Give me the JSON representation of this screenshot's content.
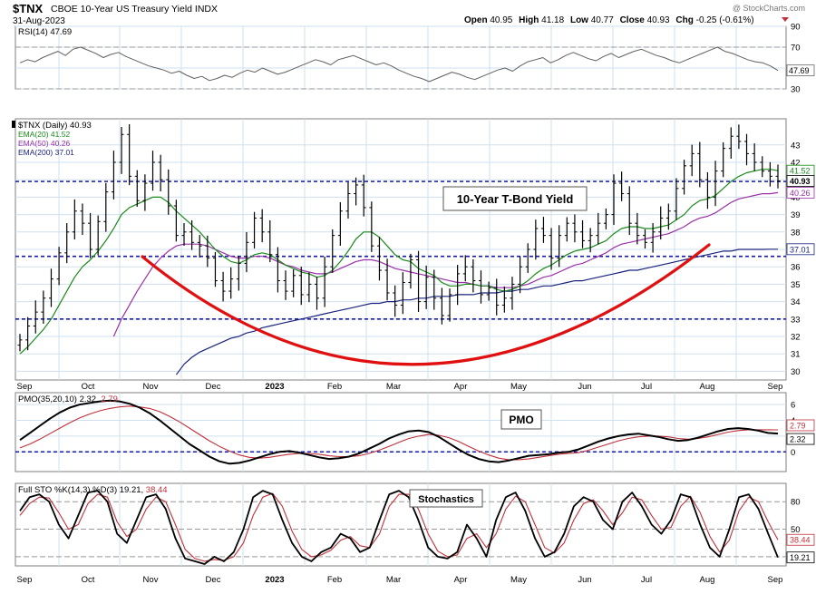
{
  "header": {
    "symbol": "$TNX",
    "description": "CBOE 10-Year US Treasury Yield INDX",
    "date": "31-Aug-2023",
    "ohlc": {
      "open_label": "Open",
      "open": "40.95",
      "high_label": "High",
      "high": "41.18",
      "low_label": "Low",
      "low": "40.77",
      "close_label": "Close",
      "close": "40.93",
      "chg_label": "Chg",
      "chg": "-0.25 (-0.61%)"
    },
    "watermark": "@ StockCharts.com"
  },
  "colors": {
    "grid": "#cfe0ee",
    "panel_border": "#7f7f7f",
    "price_bar": "#000000",
    "ema20": "#1a8a1a",
    "ema50": "#9b30a8",
    "ema200": "#1a237e",
    "support_line": "#1a1aa8",
    "curve": "#e01010",
    "pmo": "#000000",
    "pmo_signal": "#c0303a",
    "rsi": "#606060",
    "rsi_fill": "#c8a56a",
    "zero_line": "#1a1aa8",
    "label_bg": "#ffffff"
  },
  "x_axis": {
    "labels": [
      "Sep",
      "Oct",
      "Nov",
      "Dec",
      "2023",
      "Feb",
      "Mar",
      "Apr",
      "May",
      "Jun",
      "Jul",
      "Aug",
      "Sep"
    ],
    "bold_index": 4
  },
  "chart_data": [
    {
      "type": "line",
      "panel": "rsi",
      "legend": "RSI(14) 47.69",
      "ylim": [
        30,
        90
      ],
      "y_ticks": [
        90,
        70,
        50,
        30
      ],
      "current_value": "47.69",
      "reference_lines": [
        70,
        30
      ],
      "values": [
        55,
        58,
        56,
        60,
        63,
        66,
        62,
        68,
        70,
        67,
        64,
        60,
        63,
        65,
        61,
        58,
        55,
        52,
        50,
        48,
        45,
        47,
        43,
        40,
        42,
        38,
        40,
        43,
        41,
        45,
        48,
        46,
        50,
        47,
        44,
        46,
        49,
        52,
        55,
        58,
        56,
        53,
        58,
        60,
        62,
        59,
        56,
        53,
        55,
        52,
        48,
        45,
        42,
        40,
        37,
        40,
        43,
        46,
        44,
        41,
        39,
        42,
        45,
        48,
        50,
        47,
        52,
        56,
        58,
        60,
        55,
        58,
        62,
        65,
        62,
        59,
        57,
        61,
        64,
        60,
        63,
        66,
        68,
        65,
        62,
        60,
        57,
        55,
        58,
        61,
        64,
        67,
        70,
        66,
        64,
        61,
        58,
        56,
        55,
        52,
        47.69
      ]
    },
    {
      "type": "ohlc",
      "panel": "price",
      "title": "10-Year T-Bond Yield",
      "legend": [
        {
          "label": "$TNX (Daily) 40.93",
          "key": "price"
        },
        {
          "label": "EMA(20) 41.52",
          "key": "ema20"
        },
        {
          "label": "EMA(50) 40.26",
          "key": "ema50"
        },
        {
          "label": "EMA(200) 37.01",
          "key": "ema200"
        }
      ],
      "ylim": [
        29.5,
        44.5
      ],
      "y_ticks": [
        30,
        31,
        32,
        33,
        34,
        35,
        36,
        37,
        38,
        39,
        40,
        41,
        42,
        43
      ],
      "support_levels": [
        40.9,
        36.6,
        33.0
      ],
      "value_tags": [
        {
          "value": 41.52,
          "text": "41.52",
          "style": "ema20"
        },
        {
          "value": 40.93,
          "text": "40.93",
          "style": "close"
        },
        {
          "value": 40.26,
          "text": "40.26",
          "style": "ema50"
        },
        {
          "value": 37.01,
          "text": "37.01",
          "style": "ema200"
        }
      ],
      "close": [
        31.8,
        32.6,
        33.4,
        34.2,
        35.3,
        36.8,
        38.0,
        39.2,
        38.5,
        37.0,
        38.6,
        40.3,
        42.0,
        43.6,
        41.2,
        39.8,
        40.8,
        42.0,
        41.0,
        39.5,
        37.8,
        38.0,
        37.4,
        37.2,
        36.5,
        35.2,
        34.6,
        35.3,
        36.2,
        37.4,
        38.8,
        38.0,
        36.7,
        35.2,
        34.6,
        35.5,
        34.4,
        35.0,
        34.2,
        36.0,
        37.8,
        39.2,
        40.2,
        40.7,
        39.4,
        37.2,
        35.8,
        34.5,
        33.8,
        35.1,
        36.4,
        34.0,
        35.4,
        34.2,
        33.2,
        34.4,
        35.6,
        36.0,
        35.2,
        34.4,
        34.8,
        33.8,
        34.2,
        35.0,
        36.0,
        37.0,
        38.2,
        37.8,
        36.5,
        37.8,
        38.5,
        38.0,
        37.5,
        37.8,
        38.5,
        39.0,
        40.8,
        40.2,
        38.5,
        37.8,
        37.4,
        38.0,
        38.8,
        39.2,
        40.5,
        41.8,
        42.5,
        41.0,
        40.0,
        41.5,
        42.8,
        43.5,
        43.2,
        42.5,
        42.0,
        41.5,
        41.2,
        40.93
      ],
      "ema20": [
        31.0,
        31.4,
        31.9,
        32.4,
        33.0,
        33.8,
        34.6,
        35.4,
        36.0,
        36.4,
        36.9,
        37.5,
        38.2,
        39.0,
        39.4,
        39.6,
        39.8,
        40.0,
        40.0,
        39.7,
        39.2,
        38.8,
        38.4,
        38.0,
        37.5,
        37.0,
        36.6,
        36.3,
        36.2,
        36.4,
        36.7,
        36.8,
        36.7,
        36.4,
        36.1,
        35.9,
        35.7,
        35.6,
        35.4,
        35.5,
        35.8,
        36.3,
        36.9,
        37.6,
        38.0,
        38.0,
        37.7,
        37.2,
        36.7,
        36.4,
        36.3,
        35.9,
        35.7,
        35.5,
        35.1,
        34.9,
        34.9,
        35.0,
        35.0,
        34.9,
        34.9,
        34.7,
        34.6,
        34.7,
        34.9,
        35.2,
        35.6,
        35.9,
        36.1,
        36.4,
        36.7,
        36.9,
        37.0,
        37.1,
        37.3,
        37.5,
        37.9,
        38.2,
        38.3,
        38.3,
        38.2,
        38.2,
        38.3,
        38.4,
        38.7,
        39.0,
        39.5,
        39.8,
        39.9,
        40.1,
        40.5,
        40.9,
        41.2,
        41.4,
        41.5,
        41.6,
        41.6,
        41.52
      ],
      "ema50": [
        null,
        null,
        null,
        null,
        null,
        null,
        null,
        null,
        null,
        null,
        null,
        null,
        32.0,
        33.0,
        33.8,
        34.6,
        35.3,
        36.0,
        36.5,
        36.9,
        37.2,
        37.3,
        37.3,
        37.3,
        37.2,
        37.0,
        36.8,
        36.6,
        36.5,
        36.5,
        36.6,
        36.6,
        36.5,
        36.3,
        36.1,
        36.0,
        35.8,
        35.7,
        35.6,
        35.6,
        35.7,
        35.9,
        36.1,
        36.3,
        36.4,
        36.4,
        36.3,
        36.1,
        35.9,
        35.8,
        35.7,
        35.6,
        35.5,
        35.4,
        35.3,
        35.2,
        35.1,
        35.1,
        35.0,
        34.9,
        34.9,
        34.8,
        34.8,
        34.8,
        34.9,
        35.0,
        35.2,
        35.4,
        35.5,
        35.7,
        35.9,
        36.1,
        36.2,
        36.4,
        36.6,
        36.8,
        37.1,
        37.3,
        37.4,
        37.5,
        37.6,
        37.7,
        37.8,
        37.9,
        38.1,
        38.3,
        38.6,
        38.8,
        38.9,
        39.1,
        39.4,
        39.7,
        39.9,
        40.0,
        40.1,
        40.2,
        40.2,
        40.26
      ],
      "ema200": [
        null,
        null,
        null,
        null,
        null,
        null,
        null,
        null,
        null,
        null,
        null,
        null,
        null,
        null,
        null,
        null,
        null,
        null,
        null,
        null,
        29.8,
        30.4,
        30.8,
        31.1,
        31.3,
        31.5,
        31.7,
        31.9,
        32.0,
        32.2,
        32.3,
        32.5,
        32.6,
        32.7,
        32.8,
        32.9,
        33.0,
        33.1,
        33.2,
        33.3,
        33.4,
        33.5,
        33.6,
        33.7,
        33.8,
        33.9,
        33.9,
        34.0,
        34.0,
        34.1,
        34.1,
        34.2,
        34.2,
        34.3,
        34.3,
        34.3,
        34.4,
        34.4,
        34.4,
        34.5,
        34.5,
        34.5,
        34.6,
        34.6,
        34.7,
        34.7,
        34.8,
        34.9,
        34.9,
        35.0,
        35.1,
        35.2,
        35.2,
        35.3,
        35.4,
        35.5,
        35.6,
        35.7,
        35.8,
        35.8,
        35.9,
        36.0,
        36.1,
        36.2,
        36.3,
        36.4,
        36.5,
        36.6,
        36.7,
        36.8,
        36.9,
        36.9,
        37.0,
        37.0,
        37.0,
        37.0,
        37.01,
        37.01
      ]
    },
    {
      "type": "line",
      "panel": "pmo",
      "title": "PMO",
      "legend": "PMO(35,20,10) 2.32, 2.79",
      "legend_pmo": "PMO(35,20,10) 2.32,",
      "legend_signal": "2.79",
      "ylim": [
        -2.5,
        7.5
      ],
      "y_ticks": [
        6,
        4,
        2,
        0
      ],
      "zero_line": 0,
      "tags": [
        {
          "value": 2.79,
          "text": "2.79"
        },
        {
          "value": 2.32,
          "text": "2.32"
        }
      ],
      "pmo": [
        1.5,
        2.4,
        3.3,
        4.2,
        5.0,
        5.6,
        6.0,
        6.2,
        6.4,
        6.5,
        6.4,
        6.1,
        5.6,
        4.9,
        4.0,
        3.0,
        2.0,
        1.0,
        0.2,
        -0.6,
        -1.2,
        -1.5,
        -1.4,
        -1.1,
        -0.7,
        -0.3,
        0.0,
        0.1,
        -0.1,
        -0.4,
        -0.7,
        -0.9,
        -0.8,
        -0.6,
        -0.2,
        0.4,
        1.0,
        1.7,
        2.2,
        2.6,
        2.7,
        2.5,
        1.9,
        1.1,
        0.3,
        -0.4,
        -0.9,
        -1.2,
        -1.3,
        -1.1,
        -0.8,
        -0.5,
        -0.4,
        -0.3,
        -0.1,
        0.0,
        0.3,
        0.8,
        1.3,
        1.7,
        2.0,
        2.2,
        2.3,
        2.1,
        1.9,
        1.6,
        1.4,
        1.5,
        1.8,
        2.2,
        2.6,
        2.9,
        3.0,
        2.9,
        2.7,
        2.4,
        2.32
      ],
      "signal": [
        0.5,
        1.0,
        1.6,
        2.3,
        3.0,
        3.7,
        4.3,
        4.8,
        5.2,
        5.5,
        5.7,
        5.8,
        5.7,
        5.5,
        5.1,
        4.5,
        3.8,
        3.0,
        2.2,
        1.4,
        0.7,
        0.1,
        -0.4,
        -0.7,
        -0.8,
        -0.7,
        -0.5,
        -0.3,
        -0.2,
        -0.2,
        -0.3,
        -0.5,
        -0.6,
        -0.6,
        -0.5,
        -0.2,
        0.2,
        0.7,
        1.2,
        1.7,
        2.0,
        2.2,
        2.1,
        1.8,
        1.3,
        0.7,
        0.1,
        -0.4,
        -0.8,
        -1.0,
        -1.0,
        -0.9,
        -0.7,
        -0.5,
        -0.3,
        -0.2,
        -0.1,
        0.2,
        0.6,
        1.0,
        1.4,
        1.7,
        1.9,
        2.0,
        2.0,
        1.9,
        1.7,
        1.6,
        1.7,
        1.9,
        2.2,
        2.5,
        2.7,
        2.8,
        2.8,
        2.8,
        2.79
      ]
    },
    {
      "type": "line",
      "panel": "stochastics",
      "title": "Stochastics",
      "legend": "Full STO %K(14,3) %D(3) 19.21, 38.44",
      "legend_k": "Full STO %K(14,3) %D(3) 19.21,",
      "legend_d": "38.44",
      "ylim": [
        10,
        100
      ],
      "y_ticks": [
        80,
        50,
        20
      ],
      "reference_lines": [
        80,
        50,
        20
      ],
      "tags": [
        {
          "value": 38.44,
          "text": "38.44"
        },
        {
          "value": 19.21,
          "text": "19.21"
        }
      ],
      "k": [
        70,
        85,
        88,
        80,
        55,
        40,
        65,
        90,
        92,
        80,
        45,
        35,
        60,
        85,
        88,
        72,
        40,
        18,
        15,
        12,
        20,
        15,
        25,
        50,
        85,
        92,
        88,
        60,
        35,
        20,
        15,
        25,
        30,
        45,
        40,
        25,
        30,
        60,
        88,
        92,
        85,
        60,
        30,
        20,
        18,
        25,
        55,
        40,
        20,
        60,
        85,
        90,
        70,
        40,
        20,
        25,
        45,
        75,
        85,
        80,
        60,
        50,
        80,
        90,
        75,
        55,
        45,
        60,
        88,
        85,
        55,
        30,
        20,
        50,
        85,
        88,
        72,
        45,
        19.21
      ],
      "d": [
        65,
        78,
        85,
        84,
        68,
        50,
        55,
        78,
        88,
        85,
        58,
        42,
        50,
        72,
        85,
        80,
        55,
        28,
        18,
        15,
        17,
        16,
        20,
        35,
        65,
        85,
        89,
        75,
        48,
        28,
        20,
        22,
        27,
        38,
        42,
        32,
        30,
        45,
        75,
        88,
        88,
        72,
        45,
        26,
        20,
        22,
        40,
        45,
        30,
        45,
        72,
        86,
        80,
        55,
        30,
        24,
        35,
        60,
        78,
        82,
        70,
        55,
        68,
        85,
        82,
        65,
        50,
        52,
        75,
        86,
        68,
        42,
        25,
        38,
        70,
        85,
        80,
        58,
        38.44
      ]
    }
  ]
}
